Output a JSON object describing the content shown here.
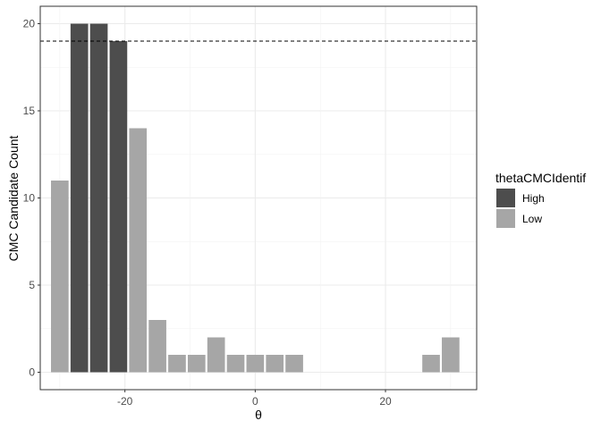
{
  "chart_data": {
    "type": "bar",
    "xlabel": "θ",
    "ylabel": "CMC Candidate Count",
    "xlim": [
      -33,
      34
    ],
    "ylim": [
      -1,
      21
    ],
    "x_ticks": [
      -20,
      0,
      20
    ],
    "x_tick_labels": [
      "-20",
      "0",
      "20"
    ],
    "y_ticks": [
      0,
      5,
      10,
      15,
      20
    ],
    "y_tick_labels": [
      "0",
      "5",
      "10",
      "15",
      "20"
    ],
    "bar_width": 2.7,
    "grid": true,
    "reference_line": {
      "y": 19,
      "style": "dashed"
    },
    "legend": {
      "title": "thetaCMCIdentif",
      "position": "right",
      "entries": [
        {
          "name": "High",
          "color": "#4d4d4d"
        },
        {
          "name": "Low",
          "color": "#a6a6a6"
        }
      ]
    },
    "bars": [
      {
        "x": -30,
        "value": 11,
        "group": "Low"
      },
      {
        "x": -27,
        "value": 20,
        "group": "High"
      },
      {
        "x": -24,
        "value": 20,
        "group": "High"
      },
      {
        "x": -21,
        "value": 19,
        "group": "High"
      },
      {
        "x": -18,
        "value": 14,
        "group": "Low"
      },
      {
        "x": -15,
        "value": 3,
        "group": "Low"
      },
      {
        "x": -12,
        "value": 1,
        "group": "Low"
      },
      {
        "x": -9,
        "value": 1,
        "group": "Low"
      },
      {
        "x": -6,
        "value": 2,
        "group": "Low"
      },
      {
        "x": -3,
        "value": 1,
        "group": "Low"
      },
      {
        "x": 0,
        "value": 1,
        "group": "Low"
      },
      {
        "x": 3,
        "value": 1,
        "group": "Low"
      },
      {
        "x": 6,
        "value": 1,
        "group": "Low"
      },
      {
        "x": 27,
        "value": 1,
        "group": "Low"
      },
      {
        "x": 30,
        "value": 2,
        "group": "Low"
      }
    ]
  }
}
